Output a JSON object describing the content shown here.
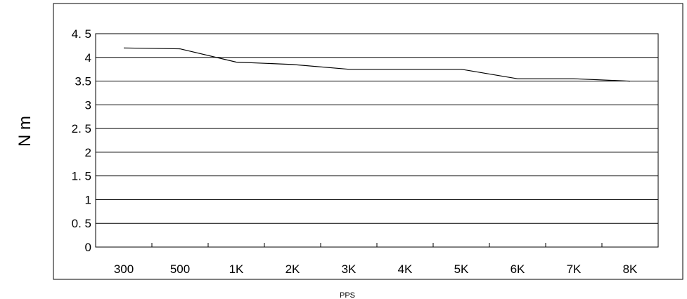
{
  "chart_data": {
    "type": "line",
    "title": "",
    "xlabel": "PPS",
    "ylabel": "N m",
    "categories": [
      "300",
      "500",
      "1K",
      "2K",
      "3K",
      "4K",
      "5K",
      "6K",
      "7K",
      "8K"
    ],
    "series": [
      {
        "values": [
          4.2,
          4.18,
          3.9,
          3.85,
          3.75,
          3.75,
          3.75,
          3.55,
          3.55,
          3.5
        ]
      }
    ],
    "ylim": [
      0,
      4.5
    ],
    "yticks": [
      "0",
      "0. 5",
      "1",
      "1. 5",
      "2",
      "2. 5",
      "3",
      "3.5",
      "4",
      "4. 5"
    ],
    "grid": true,
    "legend": "none",
    "line_color": "#000000"
  }
}
